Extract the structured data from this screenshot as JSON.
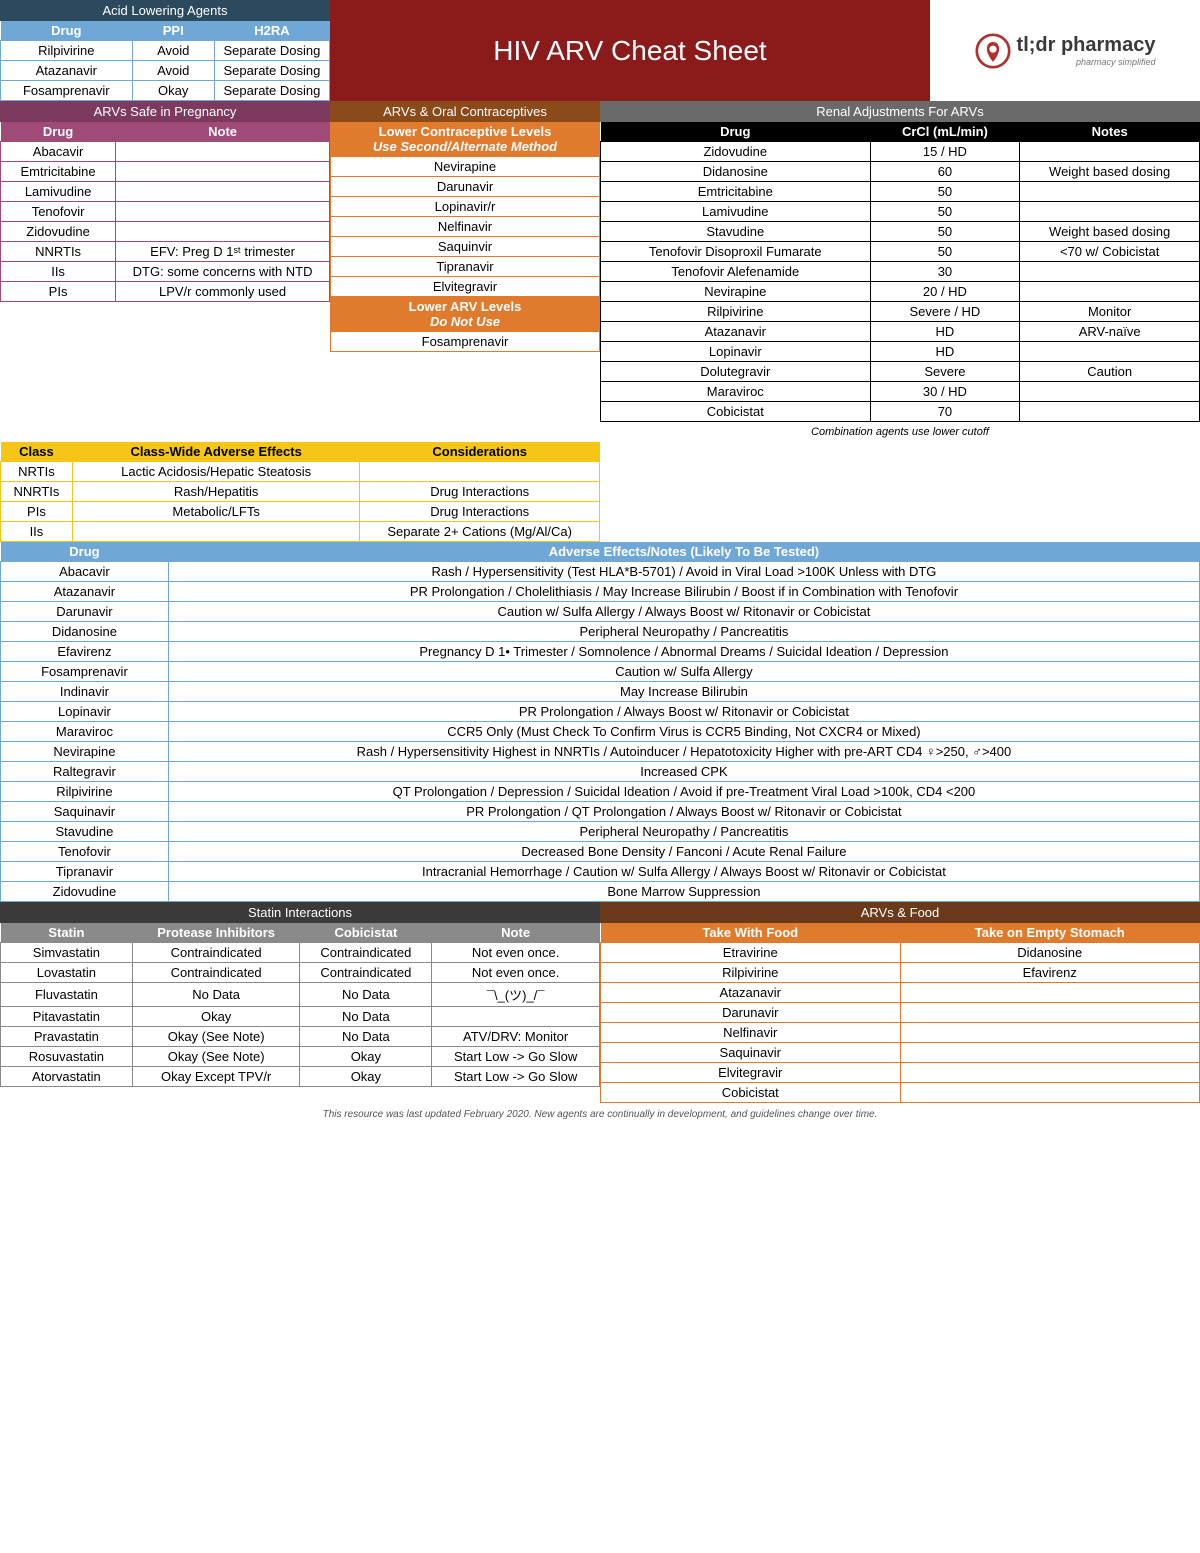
{
  "page_title": "HIV ARV Cheat Sheet",
  "logo": {
    "brand": "tl;dr pharmacy",
    "tagline": "pharmacy simplified"
  },
  "acid": {
    "title": "Acid Lowering Agents",
    "cols": [
      "Drug",
      "PPI",
      "H2RA"
    ],
    "rows": [
      [
        "Rilpivirine",
        "Avoid",
        "Separate Dosing"
      ],
      [
        "Atazanavir",
        "Avoid",
        "Separate Dosing"
      ],
      [
        "Fosamprenavir",
        "Okay",
        "Separate Dosing"
      ]
    ]
  },
  "pregnancy": {
    "title": "ARVs Safe in Pregnancy",
    "cols": [
      "Drug",
      "Note"
    ],
    "rows": [
      [
        "Abacavir",
        ""
      ],
      [
        "Emtricitabine",
        ""
      ],
      [
        "Lamivudine",
        ""
      ],
      [
        "Tenofovir",
        ""
      ],
      [
        "Zidovudine",
        ""
      ],
      [
        "NNRTIs",
        "EFV: Preg D 1ˢᵗ trimester"
      ],
      [
        "IIs",
        "DTG: some concerns with NTD"
      ],
      [
        "PIs",
        "LPV/r commonly used"
      ]
    ]
  },
  "oc": {
    "title": "ARVs & Oral Contraceptives",
    "lower_oc_head": "Lower Contraceptive Levels",
    "lower_oc_sub": "Use Second/Alternate Method",
    "lower_oc_rows": [
      "Nevirapine",
      "Darunavir",
      "Lopinavir/r",
      "Nelfinavir",
      "Saquinvir",
      "Tipranavir",
      "Elvitegravir"
    ],
    "lower_arv_head": "Lower ARV Levels",
    "lower_arv_sub": "Do Not Use",
    "lower_arv_rows": [
      "Fosamprenavir"
    ]
  },
  "classwide": {
    "cols": [
      "Class",
      "Class-Wide Adverse Effects",
      "Considerations"
    ],
    "rows": [
      [
        "NRTIs",
        "Lactic Acidosis/Hepatic Steatosis",
        ""
      ],
      [
        "NNRTIs",
        "Rash/Hepatitis",
        "Drug Interactions"
      ],
      [
        "PIs",
        "Metabolic/LFTs",
        "Drug Interactions"
      ],
      [
        "IIs",
        "",
        "Separate 2+ Cations (Mg/Al/Ca)"
      ]
    ]
  },
  "renal": {
    "title": "Renal Adjustments For ARVs",
    "cols": [
      "Drug",
      "CrCl (mL/min)",
      "Notes"
    ],
    "rows": [
      [
        "Zidovudine",
        "15 / HD",
        ""
      ],
      [
        "Didanosine",
        "60",
        "Weight based dosing"
      ],
      [
        "Emtricitabine",
        "50",
        ""
      ],
      [
        "Lamivudine",
        "50",
        ""
      ],
      [
        "Stavudine",
        "50",
        "Weight based dosing"
      ],
      [
        "Tenofovir Disoproxil Fumarate",
        "50",
        "<70 w/ Cobicistat"
      ],
      [
        "Tenofovir Alefenamide",
        "30",
        ""
      ],
      [
        "Nevirapine",
        "20 / HD",
        ""
      ],
      [
        "Rilpivirine",
        "Severe / HD",
        "Monitor"
      ],
      [
        "Atazanavir",
        "HD",
        "ARV-naïve"
      ],
      [
        "Lopinavir",
        "HD",
        ""
      ],
      [
        "Dolutegravir",
        "Severe",
        "Caution"
      ],
      [
        "Maraviroc",
        "30 / HD",
        ""
      ],
      [
        "Cobicistat",
        "70",
        ""
      ]
    ],
    "footnote": "Combination agents use lower cutoff"
  },
  "adverse": {
    "cols": [
      "Drug",
      "Adverse Effects/Notes (Likely To Be Tested)"
    ],
    "rows": [
      [
        "Abacavir",
        "Rash / Hypersensitivity (Test HLA*B-5701) / Avoid in Viral Load >100K Unless with DTG"
      ],
      [
        "Atazanavir",
        "PR Prolongation / Cholelithiasis / May Increase Bilirubin / Boost if in Combination with Tenofovir"
      ],
      [
        "Darunavir",
        "Caution w/ Sulfa Allergy / Always Boost w/ Ritonavir or Cobicistat"
      ],
      [
        "Didanosine",
        "Peripheral Neuropathy / Pancreatitis"
      ],
      [
        "Efavirenz",
        "Pregnancy D 1• Trimester / Somnolence / Abnormal Dreams / Suicidal Ideation / Depression"
      ],
      [
        "Fosamprenavir",
        "Caution w/ Sulfa Allergy"
      ],
      [
        "Indinavir",
        "May Increase Bilirubin"
      ],
      [
        "Lopinavir",
        "PR Prolongation / Always Boost w/ Ritonavir or Cobicistat"
      ],
      [
        "Maraviroc",
        "CCR5 Only (Must Check To Confirm Virus is CCR5 Binding, Not CXCR4 or Mixed)"
      ],
      [
        "Nevirapine",
        "Rash / Hypersensitivity Highest in NNRTIs / Autoinducer / Hepatotoxicity Higher with pre-ART CD4 ♀>250, ♂>400"
      ],
      [
        "Raltegravir",
        "Increased CPK"
      ],
      [
        "Rilpivirine",
        "QT Prolongation / Depression / Suicidal Ideation / Avoid if pre-Treatment Viral Load >100k, CD4 <200"
      ],
      [
        "Saquinavir",
        "PR Prolongation / QT Prolongation / Always Boost w/ Ritonavir or Cobicistat"
      ],
      [
        "Stavudine",
        "Peripheral Neuropathy / Pancreatitis"
      ],
      [
        "Tenofovir",
        "Decreased Bone Density / Fanconi / Acute Renal Failure"
      ],
      [
        "Tipranavir",
        "Intracranial Hemorrhage / Caution w/ Sulfa Allergy / Always Boost w/ Ritonavir or Cobicistat"
      ],
      [
        "Zidovudine",
        "Bone Marrow Suppression"
      ]
    ]
  },
  "statin": {
    "title": "Statin Interactions",
    "cols": [
      "Statin",
      "Protease Inhibitors",
      "Cobicistat",
      "Note"
    ],
    "rows": [
      [
        "Simvastatin",
        "Contraindicated",
        "Contraindicated",
        "Not even once."
      ],
      [
        "Lovastatin",
        "Contraindicated",
        "Contraindicated",
        "Not even once."
      ],
      [
        "Fluvastatin",
        "No Data",
        "No Data",
        "¯\\_(ツ)_/¯"
      ],
      [
        "Pitavastatin",
        "Okay",
        "No Data",
        ""
      ],
      [
        "Pravastatin",
        "Okay (See Note)",
        "No Data",
        "ATV/DRV: Monitor"
      ],
      [
        "Rosuvastatin",
        "Okay (See Note)",
        "Okay",
        "Start Low -> Go Slow"
      ],
      [
        "Atorvastatin",
        "Okay Except TPV/r",
        "Okay",
        "Start Low -> Go Slow"
      ]
    ]
  },
  "food": {
    "title": "ARVs & Food",
    "cols": [
      "Take With Food",
      "Take on Empty Stomach"
    ],
    "rows": [
      [
        "Etravirine",
        "Didanosine"
      ],
      [
        "Rilpivirine",
        "Efavirenz"
      ],
      [
        "Atazanavir",
        ""
      ],
      [
        "Darunavir",
        ""
      ],
      [
        "Nelfinavir",
        ""
      ],
      [
        "Saquinavir",
        ""
      ],
      [
        "Elvitegravir",
        ""
      ],
      [
        "Cobicistat",
        ""
      ]
    ]
  },
  "footer": "This resource was last updated February 2020. New agents are continually in development, and guidelines change over time."
}
